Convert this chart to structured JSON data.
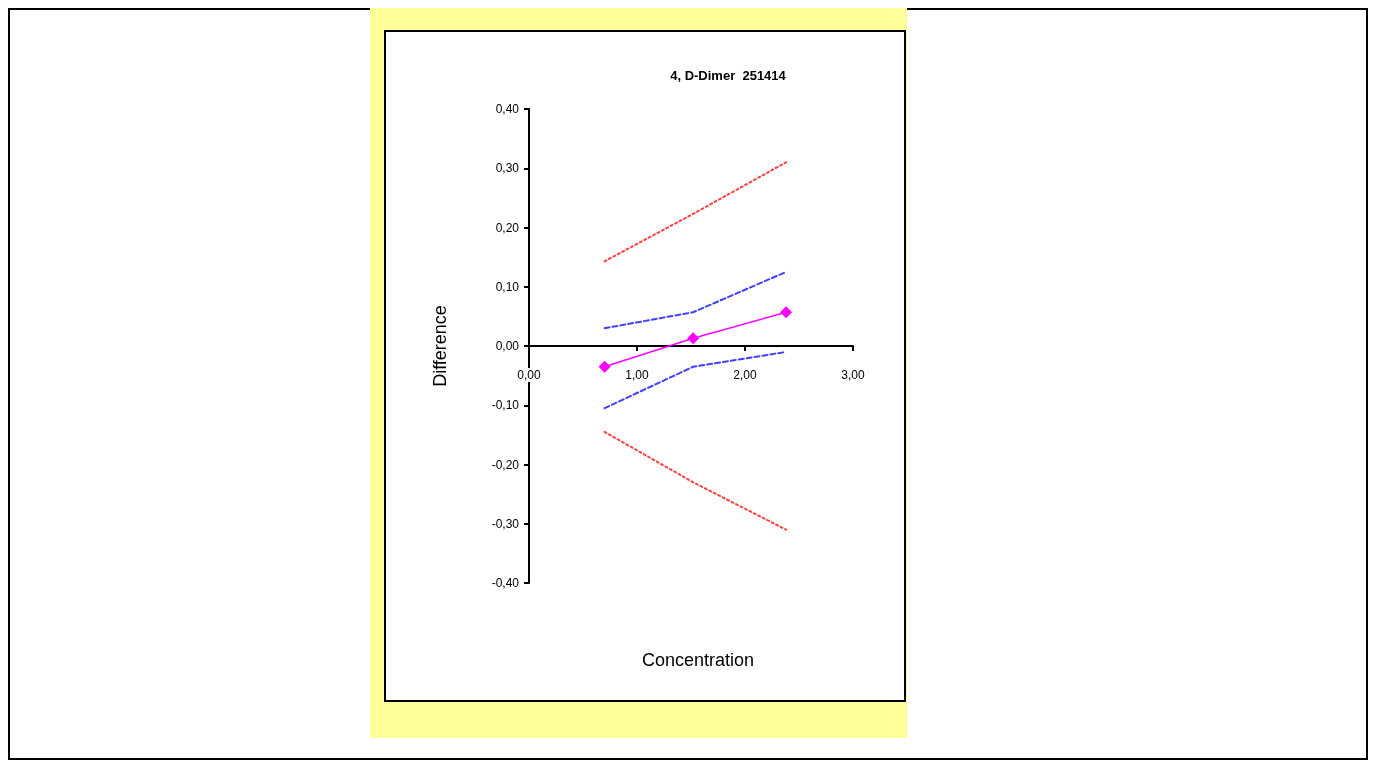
{
  "chart_data": {
    "type": "line",
    "title": "4, D-Dimer  251414",
    "xlabel": "Concentration",
    "ylabel": "Difference",
    "xlim": [
      0,
      3
    ],
    "xticks": [
      {
        "value": 0,
        "label": "0,00"
      },
      {
        "value": 1,
        "label": "1,00"
      },
      {
        "value": 2,
        "label": "2,00"
      },
      {
        "value": 3,
        "label": "3,00"
      }
    ],
    "ylim": [
      -0.4,
      0.4
    ],
    "yticks": [
      {
        "value": -0.4,
        "label": "-0,40"
      },
      {
        "value": -0.3,
        "label": "-0,30"
      },
      {
        "value": -0.2,
        "label": "-0,20"
      },
      {
        "value": -0.1,
        "label": "-0,10"
      },
      {
        "value": 0,
        "label": "0,00"
      },
      {
        "value": 0.1,
        "label": "0,10"
      },
      {
        "value": 0.2,
        "label": "0,20"
      },
      {
        "value": 0.3,
        "label": "0,30"
      },
      {
        "value": 0.4,
        "label": "0,40"
      }
    ],
    "grid": false,
    "series": [
      {
        "color": "#ff4040",
        "x": [
          0.7,
          1.52,
          2.38
        ],
        "values": [
          0.143,
          0.223,
          0.31
        ],
        "line_style": "dotted",
        "marker": "none"
      },
      {
        "color": "#ff4040",
        "x": [
          0.7,
          1.52,
          2.38
        ],
        "values": [
          -0.145,
          -0.23,
          -0.31
        ],
        "line_style": "dotted",
        "marker": "none"
      },
      {
        "color": "#4040ff",
        "x": [
          0.7,
          1.52,
          2.38
        ],
        "values": [
          0.03,
          0.057,
          0.125
        ],
        "line_style": "dashed",
        "marker": "none"
      },
      {
        "color": "#4040ff",
        "x": [
          0.7,
          1.52,
          2.38
        ],
        "values": [
          -0.105,
          -0.035,
          -0.01
        ],
        "line_style": "dashed",
        "marker": "none"
      },
      {
        "color": "#ff00ff",
        "x": [
          0.7,
          1.52,
          2.38
        ],
        "values": [
          -0.035,
          0.013,
          0.057
        ],
        "line_style": "solid",
        "marker": "diamond"
      }
    ]
  }
}
